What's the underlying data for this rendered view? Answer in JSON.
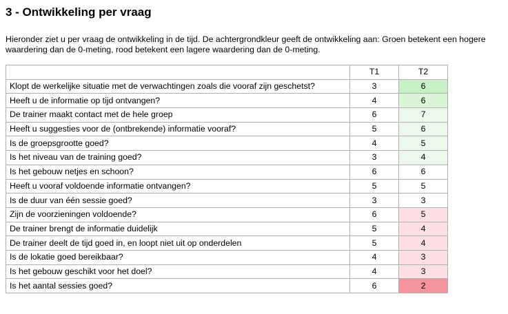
{
  "title": "3 - Ontwikkeling per vraag",
  "intro": "Hieronder ziet u per vraag de ontwikkeling in de tijd. De achtergrondkleur geeft de ontwikkeling aan: Groen betekent een hogere waardering dan de 0-meting, rood betekent een lagere waardering dan de 0-meting.",
  "table": {
    "headers": [
      "",
      "T1",
      "T2"
    ],
    "rows": [
      {
        "q": "Klopt de werkelijke situatie met de verwachtingen zoals die vooraf zijn geschetst?",
        "t1": "3",
        "t2": "6",
        "color": "#c8f0c6"
      },
      {
        "q": "Heeft u de informatie op tijd ontvangen?",
        "t1": "4",
        "t2": "6",
        "color": "#d9f5d6"
      },
      {
        "q": "De trainer maakt contact met de hele groep",
        "t1": "6",
        "t2": "7",
        "color": "#edf8ec"
      },
      {
        "q": "Heeft u suggesties voor de (ontbrekende) informatie vooraf?",
        "t1": "5",
        "t2": "6",
        "color": "#edf8ec"
      },
      {
        "q": "Is de groepsgrootte goed?",
        "t1": "4",
        "t2": "5",
        "color": "#edf8ec"
      },
      {
        "q": "Is het niveau van de training goed?",
        "t1": "3",
        "t2": "4",
        "color": "#edf8ec"
      },
      {
        "q": "Is het gebouw netjes en schoon?",
        "t1": "6",
        "t2": "6",
        "color": "#ffffff"
      },
      {
        "q": "Heeft u vooraf voldoende informatie ontvangen?",
        "t1": "5",
        "t2": "5",
        "color": "#ffffff"
      },
      {
        "q": "Is de duur van één sessie goed?",
        "t1": "3",
        "t2": "3",
        "color": "#ffffff"
      },
      {
        "q": "Zijn de voorzieningen voldoende?",
        "t1": "6",
        "t2": "5",
        "color": "#fde0e4"
      },
      {
        "q": "De trainer brengt de informatie duidelijk",
        "t1": "5",
        "t2": "4",
        "color": "#fde0e4"
      },
      {
        "q": "De trainer deelt de tijd goed in, en loopt niet uit op onderdelen",
        "t1": "5",
        "t2": "4",
        "color": "#fde0e4"
      },
      {
        "q": "Is de lokatie goed bereikbaar?",
        "t1": "4",
        "t2": "3",
        "color": "#fde0e4"
      },
      {
        "q": "Is het gebouw geschikt voor het doel?",
        "t1": "4",
        "t2": "3",
        "color": "#fde0e4"
      },
      {
        "q": "Is het aantal sessies goed?",
        "t1": "6",
        "t2": "2",
        "color": "#f5939b"
      }
    ]
  }
}
